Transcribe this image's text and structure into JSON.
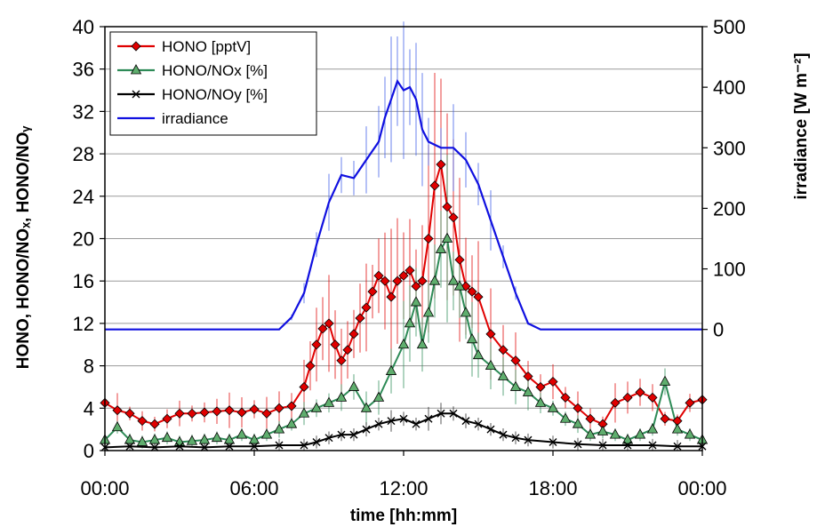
{
  "chart_data": {
    "type": "line",
    "xlabel": "time [hh:mm]",
    "ylabel_left": "HONO, HONO/NOₓ, HONO/NOᵧ",
    "ylabel_right": "irradiance [W m⁻²]",
    "x_ticks": [
      "00:00",
      "06:00",
      "12:00",
      "18:00",
      "00:00"
    ],
    "x_tick_hours": [
      0,
      6,
      12,
      18,
      24
    ],
    "xlim": [
      0,
      24
    ],
    "ylim_left": [
      0,
      40
    ],
    "y_ticks_left": [
      0,
      4,
      8,
      12,
      16,
      20,
      24,
      28,
      32,
      36,
      40
    ],
    "ylim_right": [
      -200,
      500
    ],
    "y_ticks_right": [
      0,
      100,
      200,
      300,
      400,
      500
    ],
    "grid": true,
    "legend_position": "top-left",
    "series": [
      {
        "name": "HONO [pptV]",
        "color": "#e00000",
        "marker": "diamond",
        "marker_fill": "#e00000",
        "axis": "left",
        "x": [
          0,
          0.5,
          1,
          1.5,
          2,
          2.5,
          3,
          3.5,
          4,
          4.5,
          5,
          5.5,
          6,
          6.5,
          7,
          7.5,
          8,
          8.25,
          8.5,
          8.75,
          9,
          9.25,
          9.5,
          9.75,
          10,
          10.25,
          10.5,
          10.75,
          11,
          11.25,
          11.5,
          11.75,
          12,
          12.25,
          12.5,
          12.75,
          13,
          13.25,
          13.5,
          13.75,
          14,
          14.25,
          14.5,
          14.75,
          15,
          15.5,
          16,
          16.5,
          17,
          17.5,
          18,
          18.5,
          19,
          19.5,
          20,
          20.5,
          21,
          21.5,
          22,
          22.5,
          23,
          23.5,
          24
        ],
        "y": [
          4.5,
          3.8,
          3.5,
          2.8,
          2.5,
          3.0,
          3.5,
          3.5,
          3.6,
          3.7,
          3.8,
          3.6,
          3.9,
          3.5,
          4.0,
          4.2,
          6.0,
          8.0,
          10.0,
          11.5,
          12.0,
          10.0,
          8.5,
          9.5,
          11.0,
          12.5,
          13.5,
          15.0,
          16.5,
          16.0,
          14.5,
          16.0,
          16.5,
          17.0,
          15.5,
          16.0,
          20.0,
          25.0,
          27.0,
          23.0,
          22.0,
          18.0,
          15.5,
          15.0,
          14.5,
          11.0,
          9.5,
          8.5,
          7.0,
          6.0,
          6.5,
          5.0,
          4.0,
          3.0,
          2.5,
          4.5,
          5.0,
          5.5,
          5.0,
          3.0,
          2.8,
          4.5,
          4.8
        ]
      },
      {
        "name": "HONO/NOx [%]",
        "color": "#2e8b57",
        "marker": "triangle",
        "marker_fill": "#5fae6e",
        "axis": "left",
        "x": [
          0,
          0.5,
          1,
          1.5,
          2,
          2.5,
          3,
          3.5,
          4,
          4.5,
          5,
          5.5,
          6,
          6.5,
          7,
          7.5,
          8,
          8.5,
          9,
          9.5,
          10,
          10.5,
          11,
          11.5,
          12,
          12.25,
          12.5,
          12.75,
          13,
          13.25,
          13.5,
          13.75,
          14,
          14.25,
          14.5,
          14.75,
          15,
          15.5,
          16,
          16.5,
          17,
          17.5,
          18,
          18.5,
          19,
          19.5,
          20,
          20.5,
          21,
          21.5,
          22,
          22.5,
          23,
          23.5,
          24
        ],
        "y": [
          1.0,
          2.2,
          1.0,
          0.8,
          1.0,
          1.2,
          0.8,
          0.9,
          1.0,
          1.2,
          1.0,
          1.5,
          1.0,
          1.5,
          2.0,
          2.5,
          3.5,
          4.0,
          4.5,
          5.0,
          6.0,
          4.0,
          5.0,
          7.5,
          10.0,
          12.0,
          14.0,
          10.0,
          13.0,
          16.0,
          19.0,
          20.0,
          16.0,
          15.5,
          13.0,
          10.5,
          9.0,
          8.0,
          7.0,
          6.0,
          5.5,
          4.5,
          4.0,
          3.0,
          2.5,
          1.5,
          1.8,
          1.5,
          1.0,
          1.5,
          2.0,
          6.5,
          2.0,
          1.5,
          1.0
        ]
      },
      {
        "name": "HONO/NOy [%]",
        "color": "#000000",
        "marker": "x",
        "marker_fill": "#000000",
        "axis": "left",
        "x": [
          0,
          1,
          2,
          3,
          4,
          5,
          6,
          7,
          8,
          8.5,
          9,
          9.5,
          10,
          10.5,
          11,
          11.5,
          12,
          12.5,
          13,
          13.5,
          14,
          14.5,
          15,
          15.5,
          16,
          16.5,
          17,
          18,
          19,
          20,
          21,
          22,
          23,
          24
        ],
        "y": [
          0.3,
          0.4,
          0.3,
          0.4,
          0.3,
          0.4,
          0.4,
          0.5,
          0.5,
          0.8,
          1.2,
          1.5,
          1.5,
          2.0,
          2.5,
          2.8,
          3.0,
          2.5,
          3.0,
          3.5,
          3.5,
          2.8,
          2.5,
          2.0,
          1.5,
          1.2,
          1.0,
          0.8,
          0.6,
          0.5,
          0.5,
          0.5,
          0.4,
          0.4
        ]
      },
      {
        "name": "irradiance",
        "color": "#1010e0",
        "marker": "none",
        "axis": "right",
        "x": [
          0,
          0.5,
          1,
          1.5,
          2,
          2.5,
          3,
          3.5,
          4,
          4.5,
          5,
          5.5,
          6,
          6.5,
          7,
          7.5,
          8,
          8.5,
          9,
          9.5,
          10,
          10.5,
          11,
          11.25,
          11.5,
          11.75,
          12,
          12.25,
          12.5,
          12.75,
          13,
          13.5,
          14,
          14.5,
          15,
          15.5,
          16,
          16.5,
          17,
          17.5,
          18,
          18.5,
          19,
          19.5,
          20,
          20.5,
          21,
          21.5,
          22,
          22.5,
          23,
          23.5,
          24
        ],
        "y": [
          0,
          0,
          0,
          0,
          0,
          0,
          0,
          0,
          0,
          0,
          0,
          0,
          0,
          0,
          0,
          20,
          60,
          140,
          210,
          255,
          250,
          280,
          310,
          350,
          380,
          410,
          395,
          400,
          380,
          330,
          310,
          300,
          300,
          280,
          240,
          180,
          120,
          60,
          10,
          0,
          0,
          0,
          0,
          0,
          0,
          0,
          0,
          0,
          0,
          0,
          0,
          0,
          0
        ]
      }
    ]
  }
}
